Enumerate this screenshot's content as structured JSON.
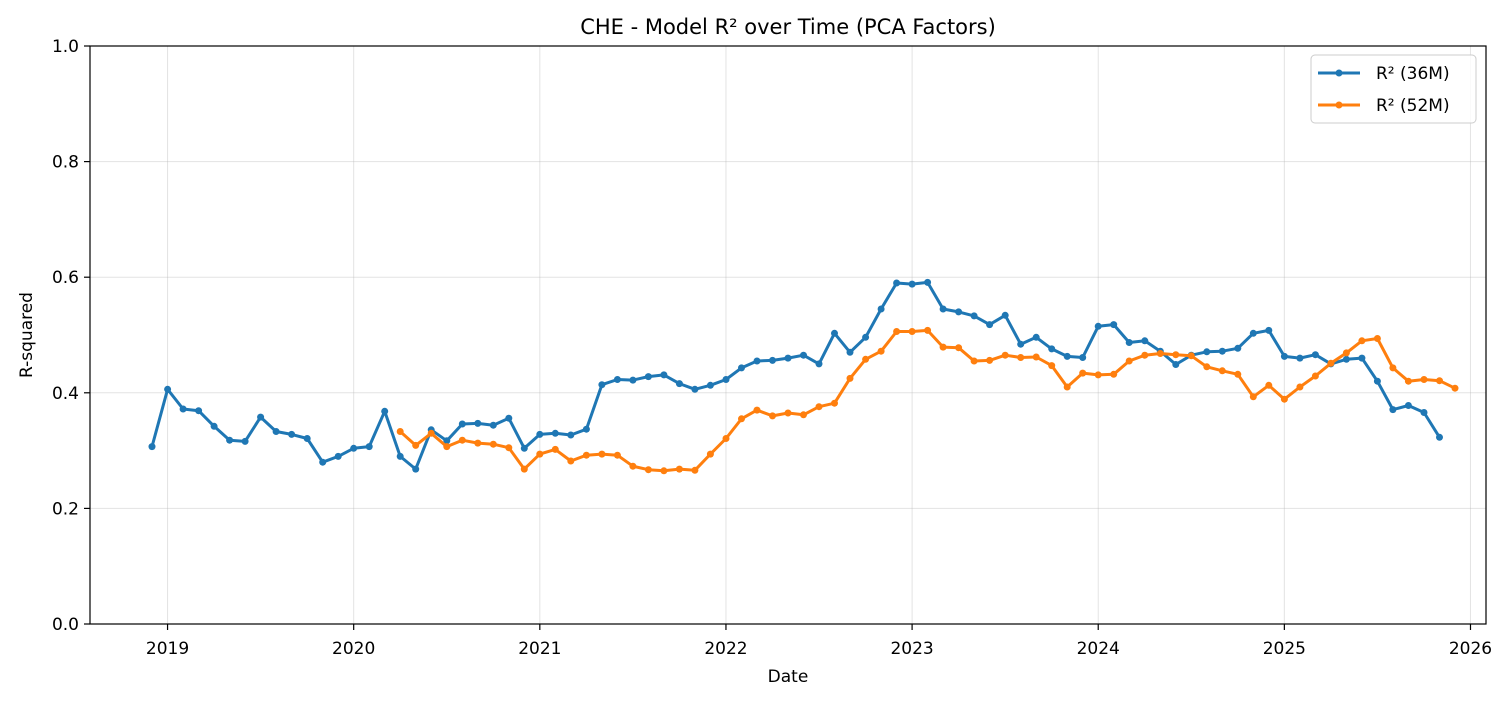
{
  "chart_data": {
    "type": "line",
    "title": "CHE - Model R² over Time (PCA Factors)",
    "xlabel": "Date",
    "ylabel": "R-squared",
    "ylim": [
      0,
      1.0
    ],
    "xlim": [
      "2018-08-01",
      "2026-02-01"
    ],
    "yticks": [
      "0.0",
      "0.2",
      "0.4",
      "0.6",
      "0.8",
      "1.0"
    ],
    "xticks": [
      "2019",
      "2020",
      "2021",
      "2022",
      "2023",
      "2024",
      "2025",
      "2026"
    ],
    "grid": true,
    "legend_position": "top-right",
    "series": [
      {
        "name": "R² (36M)",
        "color": "#1f77b4",
        "start": "2018-12",
        "values": [
          0.307,
          0.406,
          0.372,
          0.369,
          0.342,
          0.318,
          0.316,
          0.358,
          0.333,
          0.328,
          0.321,
          0.28,
          0.29,
          0.304,
          0.307,
          0.368,
          0.29,
          0.268,
          0.336,
          0.317,
          0.346,
          0.347,
          0.344,
          0.356,
          0.304,
          0.328,
          0.33,
          0.327,
          0.337,
          0.414,
          0.423,
          0.422,
          0.428,
          0.431,
          0.416,
          0.406,
          0.413,
          0.423,
          0.443,
          0.455,
          0.456,
          0.46,
          0.465,
          0.45,
          0.503,
          0.47,
          0.496,
          0.545,
          0.59,
          0.588,
          0.591,
          0.545,
          0.54,
          0.533,
          0.518,
          0.534,
          0.484,
          0.496,
          0.476,
          0.463,
          0.461,
          0.515,
          0.518,
          0.487,
          0.49,
          0.472,
          0.449,
          0.465,
          0.471,
          0.472,
          0.477,
          0.503,
          0.508,
          0.463,
          0.46,
          0.466,
          0.45,
          0.458,
          0.46,
          0.42,
          0.371,
          0.378,
          0.366,
          0.323
        ]
      },
      {
        "name": "R² (52M)",
        "color": "#ff7f0e",
        "start": "2020-04",
        "values": [
          0.333,
          0.309,
          0.33,
          0.307,
          0.318,
          0.313,
          0.311,
          0.305,
          0.268,
          0.294,
          0.302,
          0.282,
          0.292,
          0.294,
          0.292,
          0.273,
          0.267,
          0.265,
          0.268,
          0.266,
          0.294,
          0.321,
          0.355,
          0.37,
          0.36,
          0.365,
          0.362,
          0.376,
          0.382,
          0.425,
          0.458,
          0.472,
          0.506,
          0.506,
          0.508,
          0.479,
          0.478,
          0.455,
          0.456,
          0.465,
          0.461,
          0.462,
          0.447,
          0.41,
          0.434,
          0.431,
          0.432,
          0.455,
          0.465,
          0.468,
          0.466,
          0.464,
          0.445,
          0.438,
          0.432,
          0.393,
          0.413,
          0.389,
          0.41,
          0.429,
          0.451,
          0.469,
          0.49,
          0.494,
          0.443,
          0.42,
          0.423,
          0.421,
          0.408
        ]
      }
    ]
  }
}
